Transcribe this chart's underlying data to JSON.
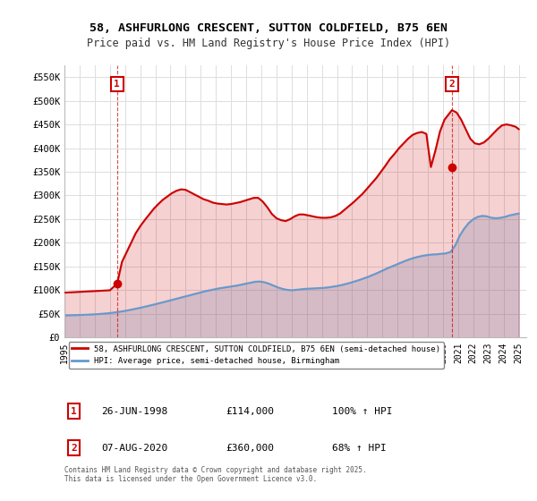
{
  "title_line1": "58, ASHFURLONG CRESCENT, SUTTON COLDFIELD, B75 6EN",
  "title_line2": "Price paid vs. HM Land Registry's House Price Index (HPI)",
  "xlabel": "",
  "ylabel": "",
  "background_color": "#ffffff",
  "plot_bg_color": "#ffffff",
  "grid_color": "#dddddd",
  "property_color": "#cc0000",
  "hpi_color": "#6699cc",
  "annotation1_label": "1",
  "annotation1_date": "26-JUN-1998",
  "annotation1_price": "£114,000",
  "annotation1_hpi": "100% ↑ HPI",
  "annotation2_label": "2",
  "annotation2_date": "07-AUG-2020",
  "annotation2_price": "£360,000",
  "annotation2_hpi": "68% ↑ HPI",
  "legend_line1": "58, ASHFURLONG CRESCENT, SUTTON COLDFIELD, B75 6EN (semi-detached house)",
  "legend_line2": "HPI: Average price, semi-detached house, Birmingham",
  "footer": "Contains HM Land Registry data © Crown copyright and database right 2025.\nThis data is licensed under the Open Government Licence v3.0.",
  "ylim": [
    0,
    575000
  ],
  "yticks": [
    0,
    50000,
    100000,
    150000,
    200000,
    250000,
    300000,
    350000,
    400000,
    450000,
    500000,
    550000
  ],
  "ytick_labels": [
    "£0",
    "£50K",
    "£100K",
    "£150K",
    "£200K",
    "£250K",
    "£300K",
    "£350K",
    "£400K",
    "£450K",
    "£500K",
    "£550K"
  ],
  "xlim_start": 1995.0,
  "xlim_end": 2025.5,
  "xticks": [
    1995,
    1996,
    1997,
    1998,
    1999,
    2000,
    2001,
    2002,
    2003,
    2004,
    2005,
    2006,
    2007,
    2008,
    2009,
    2010,
    2011,
    2012,
    2013,
    2014,
    2015,
    2016,
    2017,
    2018,
    2019,
    2020,
    2021,
    2022,
    2023,
    2024,
    2025
  ],
  "sale1_x": 1998.48,
  "sale1_y": 114000,
  "sale2_x": 2020.59,
  "sale2_y": 360000,
  "property_line": {
    "x": [
      1995.0,
      1995.3,
      1995.6,
      1995.9,
      1996.2,
      1996.5,
      1996.8,
      1997.1,
      1997.4,
      1997.7,
      1998.0,
      1998.48,
      1998.8,
      1999.1,
      1999.4,
      1999.7,
      2000.0,
      2000.3,
      2000.6,
      2000.9,
      2001.2,
      2001.5,
      2001.8,
      2002.1,
      2002.4,
      2002.7,
      2003.0,
      2003.3,
      2003.6,
      2003.9,
      2004.2,
      2004.5,
      2004.8,
      2005.1,
      2005.4,
      2005.7,
      2006.0,
      2006.3,
      2006.6,
      2006.9,
      2007.2,
      2007.5,
      2007.8,
      2008.1,
      2008.4,
      2008.7,
      2009.0,
      2009.3,
      2009.6,
      2009.9,
      2010.2,
      2010.5,
      2010.8,
      2011.1,
      2011.4,
      2011.7,
      2012.0,
      2012.3,
      2012.6,
      2012.9,
      2013.2,
      2013.5,
      2013.8,
      2014.1,
      2014.4,
      2014.7,
      2015.0,
      2015.3,
      2015.6,
      2015.9,
      2016.2,
      2016.5,
      2016.8,
      2017.1,
      2017.4,
      2017.7,
      2018.0,
      2018.3,
      2018.6,
      2018.9,
      2019.2,
      2019.5,
      2019.8,
      2020.1,
      2020.59,
      2020.9,
      2021.2,
      2021.5,
      2021.8,
      2022.1,
      2022.4,
      2022.7,
      2023.0,
      2023.3,
      2023.6,
      2023.9,
      2024.2,
      2024.5,
      2024.8,
      2025.0
    ],
    "y": [
      95000,
      95500,
      96000,
      96500,
      97000,
      97500,
      98000,
      98500,
      99000,
      99500,
      100000,
      114000,
      160000,
      180000,
      200000,
      220000,
      235000,
      248000,
      260000,
      272000,
      282000,
      291000,
      298000,
      305000,
      310000,
      313000,
      312000,
      307000,
      302000,
      297000,
      292000,
      289000,
      285000,
      283000,
      282000,
      281000,
      282000,
      284000,
      286000,
      289000,
      292000,
      295000,
      295000,
      287000,
      275000,
      261000,
      252000,
      248000,
      246000,
      250000,
      256000,
      260000,
      260000,
      258000,
      256000,
      254000,
      253000,
      253000,
      254000,
      257000,
      262000,
      270000,
      278000,
      286000,
      295000,
      304000,
      315000,
      326000,
      337000,
      350000,
      363000,
      377000,
      388000,
      400000,
      410000,
      420000,
      428000,
      432000,
      434000,
      430000,
      360000,
      395000,
      435000,
      460000,
      480000,
      475000,
      460000,
      440000,
      420000,
      410000,
      408000,
      412000,
      420000,
      430000,
      440000,
      448000,
      450000,
      448000,
      445000,
      440000
    ]
  },
  "hpi_line": {
    "x": [
      1995.0,
      1995.3,
      1995.6,
      1995.9,
      1996.2,
      1996.5,
      1996.8,
      1997.1,
      1997.4,
      1997.7,
      1998.0,
      1998.3,
      1998.6,
      1998.9,
      1999.2,
      1999.5,
      1999.8,
      2000.1,
      2000.4,
      2000.7,
      2001.0,
      2001.3,
      2001.6,
      2001.9,
      2002.2,
      2002.5,
      2002.8,
      2003.1,
      2003.4,
      2003.7,
      2004.0,
      2004.3,
      2004.6,
      2004.9,
      2005.2,
      2005.5,
      2005.8,
      2006.1,
      2006.4,
      2006.7,
      2007.0,
      2007.3,
      2007.6,
      2007.9,
      2008.2,
      2008.5,
      2008.8,
      2009.1,
      2009.4,
      2009.7,
      2010.0,
      2010.3,
      2010.6,
      2010.9,
      2011.2,
      2011.5,
      2011.8,
      2012.1,
      2012.4,
      2012.7,
      2013.0,
      2013.3,
      2013.6,
      2013.9,
      2014.2,
      2014.5,
      2014.8,
      2015.1,
      2015.4,
      2015.7,
      2016.0,
      2016.3,
      2016.6,
      2016.9,
      2017.2,
      2017.5,
      2017.8,
      2018.1,
      2018.4,
      2018.7,
      2019.0,
      2019.3,
      2019.6,
      2019.9,
      2020.2,
      2020.5,
      2020.8,
      2021.1,
      2021.4,
      2021.7,
      2022.0,
      2022.3,
      2022.6,
      2022.9,
      2023.2,
      2023.5,
      2023.8,
      2024.1,
      2024.4,
      2024.7,
      2025.0
    ],
    "y": [
      47000,
      47200,
      47500,
      47800,
      48100,
      48500,
      49000,
      49500,
      50200,
      51000,
      52000,
      53200,
      54500,
      56000,
      57800,
      59700,
      61700,
      63800,
      66000,
      68300,
      70600,
      73000,
      75500,
      78000,
      80500,
      83000,
      85500,
      88000,
      90500,
      93000,
      95500,
      98000,
      100000,
      102000,
      104000,
      105500,
      107000,
      108500,
      110000,
      112000,
      114000,
      116000,
      118000,
      118500,
      117000,
      114000,
      110000,
      106000,
      103000,
      101000,
      100000,
      101000,
      102000,
      103000,
      103500,
      104000,
      104500,
      105000,
      106000,
      107500,
      109000,
      111000,
      113500,
      116000,
      119000,
      122000,
      125500,
      129000,
      133000,
      137000,
      141500,
      146000,
      150000,
      154000,
      158000,
      162000,
      165500,
      168500,
      171000,
      173000,
      174500,
      175500,
      176000,
      177000,
      178000,
      181000,
      194000,
      215000,
      230000,
      242000,
      250000,
      255000,
      257000,
      256000,
      253000,
      252000,
      253000,
      255000,
      258000,
      260000,
      262000
    ]
  }
}
